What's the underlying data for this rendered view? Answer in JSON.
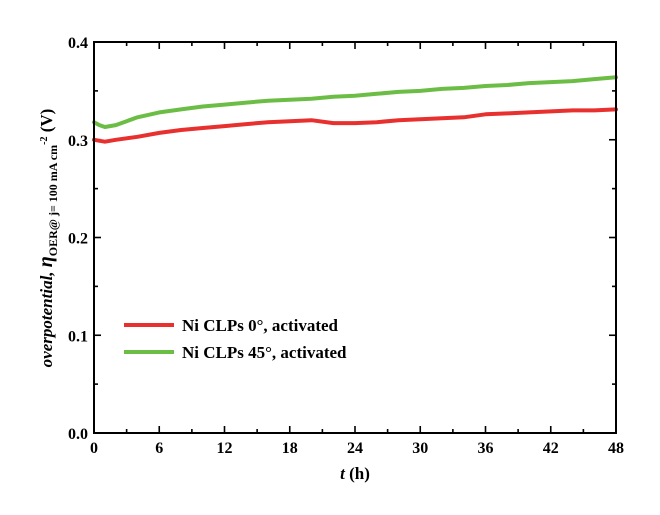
{
  "chart_data": {
    "type": "line",
    "title": "",
    "xlabel_italic": "t",
    "xlabel_rest": " (h)",
    "ylabel_parts": {
      "main": "overpotential, ",
      "eta": "η",
      "sub": "OER@ j= 100 mA cm",
      "sup": "-2",
      "unit": " (V)"
    },
    "xlim": [
      0,
      48
    ],
    "ylim": [
      0.0,
      0.4
    ],
    "xticks": [
      0,
      6,
      12,
      18,
      24,
      30,
      36,
      42,
      48
    ],
    "yticks": [
      0.0,
      0.1,
      0.2,
      0.3,
      0.4
    ],
    "xtick_labels": [
      "0",
      "6",
      "12",
      "18",
      "24",
      "30",
      "36",
      "42",
      "48"
    ],
    "ytick_labels": [
      "0.0",
      "0.1",
      "0.2",
      "0.3",
      "0.4"
    ],
    "grid": false,
    "legend_position": "lower-left",
    "series": [
      {
        "name": "Ni CLPs 0°, activated",
        "color": "#e8302f",
        "x": [
          0,
          1,
          2,
          4,
          6,
          8,
          10,
          12,
          14,
          16,
          18,
          20,
          22,
          24,
          26,
          28,
          30,
          32,
          34,
          36,
          38,
          40,
          42,
          44,
          46,
          48
        ],
        "y": [
          0.3,
          0.298,
          0.3,
          0.303,
          0.307,
          0.31,
          0.312,
          0.314,
          0.316,
          0.318,
          0.319,
          0.32,
          0.317,
          0.317,
          0.318,
          0.32,
          0.321,
          0.322,
          0.323,
          0.326,
          0.327,
          0.328,
          0.329,
          0.33,
          0.33,
          0.331
        ]
      },
      {
        "name": "Ni CLPs 45°, activated",
        "color": "#6cbd45",
        "x": [
          0,
          0.5,
          1,
          2,
          3,
          4,
          6,
          8,
          10,
          12,
          14,
          16,
          18,
          20,
          22,
          24,
          26,
          28,
          30,
          32,
          34,
          36,
          38,
          40,
          42,
          44,
          46,
          48
        ],
        "y": [
          0.318,
          0.315,
          0.313,
          0.315,
          0.319,
          0.323,
          0.328,
          0.331,
          0.334,
          0.336,
          0.338,
          0.34,
          0.341,
          0.342,
          0.344,
          0.345,
          0.347,
          0.349,
          0.35,
          0.352,
          0.353,
          0.355,
          0.356,
          0.358,
          0.359,
          0.36,
          0.362,
          0.364
        ]
      }
    ]
  }
}
